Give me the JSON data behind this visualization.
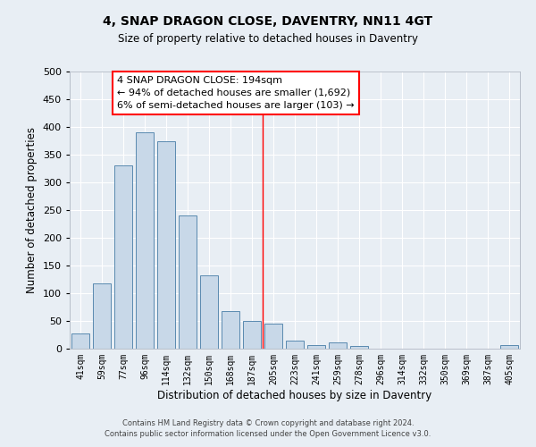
{
  "title": "4, SNAP DRAGON CLOSE, DAVENTRY, NN11 4GT",
  "subtitle": "Size of property relative to detached houses in Daventry",
  "xlabel": "Distribution of detached houses by size in Daventry",
  "ylabel": "Number of detached properties",
  "bar_labels": [
    "41sqm",
    "59sqm",
    "77sqm",
    "96sqm",
    "114sqm",
    "132sqm",
    "150sqm",
    "168sqm",
    "187sqm",
    "205sqm",
    "223sqm",
    "241sqm",
    "259sqm",
    "278sqm",
    "296sqm",
    "314sqm",
    "332sqm",
    "350sqm",
    "369sqm",
    "387sqm",
    "405sqm"
  ],
  "bar_values": [
    27,
    117,
    330,
    390,
    375,
    240,
    133,
    68,
    50,
    45,
    15,
    7,
    12,
    5,
    0,
    0,
    0,
    0,
    0,
    0,
    6
  ],
  "bar_color": "#c8d8e8",
  "bar_edge_color": "#5a8ab0",
  "vline_x": 8.5,
  "vline_color": "red",
  "ylim": [
    0,
    500
  ],
  "yticks": [
    0,
    50,
    100,
    150,
    200,
    250,
    300,
    350,
    400,
    450,
    500
  ],
  "box_text_line1": "4 SNAP DRAGON CLOSE: 194sqm",
  "box_text_line2": "← 94% of detached houses are smaller (1,692)",
  "box_text_line3": "6% of semi-detached houses are larger (103) →",
  "bg_color": "#e8eef4",
  "footer_line1": "Contains HM Land Registry data © Crown copyright and database right 2024.",
  "footer_line2": "Contains public sector information licensed under the Open Government Licence v3.0."
}
